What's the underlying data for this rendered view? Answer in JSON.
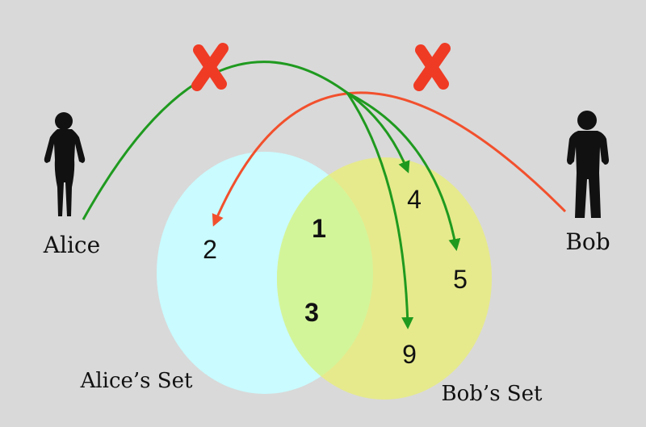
{
  "people": {
    "alice": "Alice",
    "bob": "Bob"
  },
  "sets": {
    "alice_set": "Alice’s Set",
    "bob_set": "Bob’s Set"
  },
  "elements": {
    "alice_only": [
      "2"
    ],
    "shared": [
      "1",
      "3"
    ],
    "bob_only": [
      "4",
      "5",
      "9"
    ]
  },
  "colors": {
    "background": "#d9d9d9",
    "alice_set_fill": "#c9fbff",
    "bob_set_fill": "#e6ea8c",
    "intersection_fill": "#d3f59a",
    "alice_arrow": "#1f9a1f",
    "bob_arrow": "#f2502d",
    "blocked_mark": "#ef3b24",
    "person_silhouette": "#111111"
  }
}
